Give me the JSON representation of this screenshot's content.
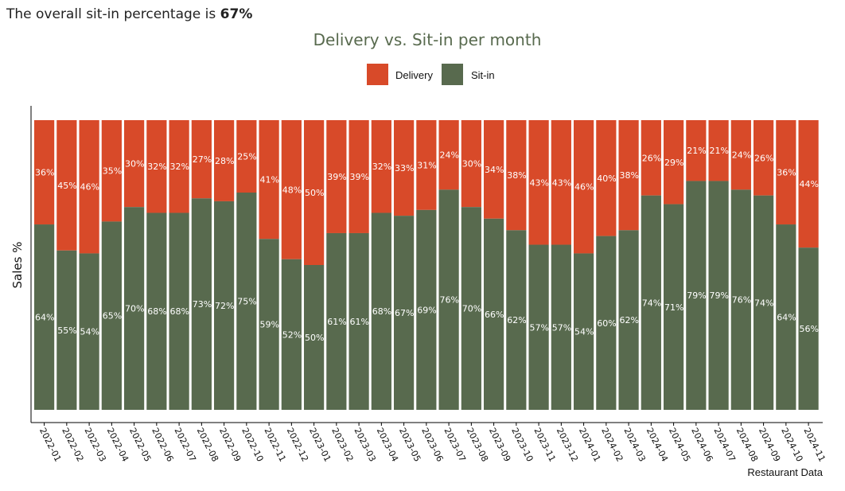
{
  "header": {
    "prefix": "The overall sit-in percentage is",
    "value": "67%"
  },
  "colors": {
    "delivery": "#d84a29",
    "sitin": "#586a4e",
    "title": "#586a4e",
    "axis": "#000000"
  },
  "chart_data": {
    "type": "bar",
    "stacked": true,
    "normalized": true,
    "title": "Delivery vs. Sit-in per month",
    "xlabel": "Restaurant Data",
    "ylabel": "Sales %",
    "legend_position": "top",
    "ylim": [
      0,
      100
    ],
    "grid": false,
    "categories": [
      "2022-01",
      "2022-02",
      "2022-03",
      "2022-04",
      "2022-05",
      "2022-06",
      "2022-07",
      "2022-08",
      "2022-09",
      "2022-10",
      "2022-11",
      "2022-12",
      "2023-01",
      "2023-02",
      "2023-03",
      "2023-04",
      "2023-05",
      "2023-06",
      "2023-07",
      "2023-08",
      "2023-09",
      "2023-10",
      "2023-11",
      "2023-12",
      "2024-01",
      "2024-02",
      "2024-03",
      "2024-04",
      "2024-05",
      "2024-06",
      "2024-07",
      "2024-08",
      "2024-09",
      "2024-10",
      "2024-11"
    ],
    "series": [
      {
        "name": "Delivery",
        "values": [
          36,
          45,
          46,
          35,
          30,
          32,
          32,
          27,
          28,
          25,
          41,
          48,
          50,
          39,
          39,
          32,
          33,
          31,
          24,
          30,
          34,
          38,
          43,
          43,
          46,
          40,
          38,
          26,
          29,
          21,
          21,
          24,
          26,
          36,
          44
        ]
      },
      {
        "name": "Sit-in",
        "values": [
          64,
          55,
          54,
          65,
          70,
          68,
          68,
          73,
          72,
          75,
          59,
          52,
          50,
          61,
          61,
          68,
          67,
          69,
          76,
          70,
          66,
          62,
          57,
          57,
          54,
          60,
          62,
          74,
          71,
          79,
          79,
          76,
          74,
          64,
          56
        ]
      }
    ],
    "label_suffix": "%"
  }
}
